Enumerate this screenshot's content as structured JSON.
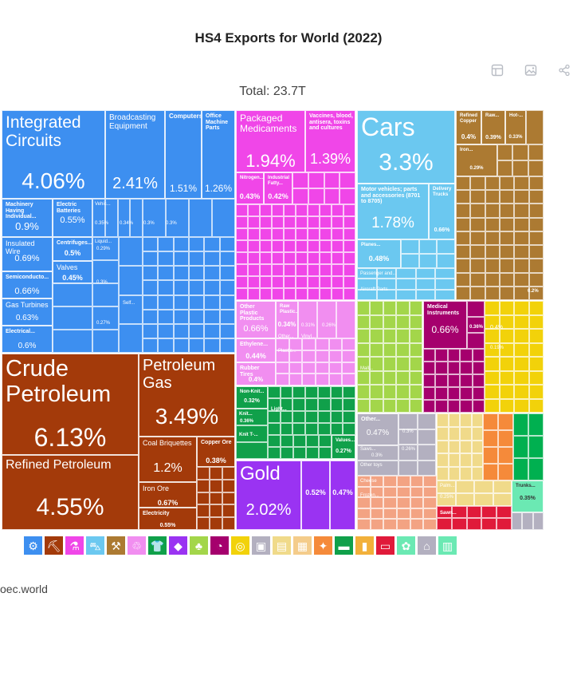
{
  "title": "HS4 Exports for World (2022)",
  "total": "Total: 23.7T",
  "source": "oec.world",
  "toolbar": [
    {
      "name": "table-icon"
    },
    {
      "name": "image-icon"
    },
    {
      "name": "share-icon"
    }
  ],
  "colors": {
    "machines": "#3d8ff0",
    "mineral": "#a33a0a",
    "chemical": "#f046e8",
    "transport": "#6bc8f0",
    "metals": "#ac7a32",
    "plastics": "#f18ef0",
    "textiles": "#10a04a",
    "precious": "#9a33f2",
    "vegetable": "#a3d64a",
    "instruments": "#a5006d",
    "misc": "#f2d20a",
    "stone": "#b3b0c0",
    "foodstuffs": "#f0da8a",
    "animal": "#f58a3a",
    "wood": "#f3a383",
    "weapons": "#e01a3a",
    "footwear": "#6be9b3",
    "paper": "#f4cc8b",
    "hides": "#00b050"
  },
  "chart_data": {
    "type": "treemap",
    "title": "HS4 Exports for World (2022)",
    "total": "23.7T",
    "tiles": [
      {
        "label": "Integrated Circuits",
        "share": "4.06%",
        "sector": "machines"
      },
      {
        "label": "Broadcasting Equipment",
        "share": "2.41%",
        "sector": "machines"
      },
      {
        "label": "Computers",
        "share": "1.51%",
        "sector": "machines"
      },
      {
        "label": "Office Machine Parts",
        "share": "1.26%",
        "sector": "machines"
      },
      {
        "label": "Machinery Having Individual...",
        "share": "0.9%",
        "sector": "machines"
      },
      {
        "label": "Electric Batteries",
        "share": "0.55%",
        "sector": "machines"
      },
      {
        "label": "Insulated Wire",
        "share": "0.69%",
        "sector": "machines"
      },
      {
        "label": "Centrifuges...",
        "share": "0.5%",
        "sector": "machines"
      },
      {
        "label": "Valves",
        "share": "0.45%",
        "sector": "machines"
      },
      {
        "label": "Semiconducto...",
        "share": "0.66%",
        "sector": "machines"
      },
      {
        "label": "Gas Turbines",
        "share": "0.63%",
        "sector": "machines"
      },
      {
        "label": "Electrical...",
        "share": "0.6%",
        "sector": "machines"
      },
      {
        "label": "Crude Petroleum",
        "share": "6.13%",
        "sector": "mineral"
      },
      {
        "label": "Refined Petroleum",
        "share": "4.55%",
        "sector": "mineral"
      },
      {
        "label": "Petroleum Gas",
        "share": "3.49%",
        "sector": "mineral"
      },
      {
        "label": "Coal Briquettes",
        "share": "1.2%",
        "sector": "mineral"
      },
      {
        "label": "Copper Ore",
        "share": "0.38%",
        "sector": "mineral"
      },
      {
        "label": "Iron Ore",
        "share": "0.67%",
        "sector": "mineral"
      },
      {
        "label": "Electricity",
        "share": "0.55%",
        "sector": "mineral"
      },
      {
        "label": "Packaged Medicaments",
        "share": "1.94%",
        "sector": "chemical"
      },
      {
        "label": "Vaccines, blood, antisera, toxins and cultures",
        "share": "1.39%",
        "sector": "chemical"
      },
      {
        "label": "Nitrogen...",
        "share": "0.43%",
        "sector": "chemical"
      },
      {
        "label": "Industrial Fatty...",
        "share": "0.42%",
        "sector": "chemical"
      },
      {
        "label": "Cars",
        "share": "3.3%",
        "sector": "transport"
      },
      {
        "label": "Motor vehicles; parts and accessories (8701 to 8705)",
        "share": "1.78%",
        "sector": "transport"
      },
      {
        "label": "Delivery Trucks",
        "share": "0.66%",
        "sector": "transport"
      },
      {
        "label": "Planes...",
        "share": "0.48%",
        "sector": "transport"
      },
      {
        "label": "Refined Copper",
        "share": "0.4%",
        "sector": "metals"
      },
      {
        "label": "Raw...",
        "share": "0.39%",
        "sector": "metals"
      },
      {
        "label": "Hot-...",
        "share": "0.33%",
        "sector": "metals"
      },
      {
        "label": "Iron...",
        "share": "0.29%",
        "sector": "metals"
      },
      {
        "label": "Other Plastic Products",
        "share": "0.66%",
        "sector": "plastics"
      },
      {
        "label": "Raw Plastic...",
        "share": "0.34%",
        "sector": "plastics"
      },
      {
        "label": "Ethylene...",
        "share": "0.44%",
        "sector": "plastics"
      },
      {
        "label": "Rubber Tires",
        "share": "0.4%",
        "sector": "plastics"
      },
      {
        "label": "Non-Knit...",
        "share": "0.32%",
        "sector": "textiles"
      },
      {
        "label": "Values...",
        "share": "0.27%",
        "sector": "textiles"
      },
      {
        "label": "Gold",
        "share": "2.02%",
        "sector": "precious"
      },
      {
        "label": "",
        "share": "0.52%",
        "sector": "precious"
      },
      {
        "label": "",
        "share": "0.47%",
        "sector": "precious"
      },
      {
        "label": "Medical Instruments",
        "share": "0.66%",
        "sector": "instruments"
      },
      {
        "label": "Other...",
        "share": "0.47%",
        "sector": "stone"
      },
      {
        "label": "Trunks...",
        "share": "0.35%",
        "sector": "footwear"
      }
    ]
  },
  "tile_texts": {
    "t_small": [
      "0.35%",
      "0.34%",
      "0.3%",
      "0.3%",
      "0.29%",
      "0.27%",
      "0.38%",
      "0.36%",
      "0.3%",
      "0.3%",
      "0.2%",
      "0.19%",
      "0.26%",
      "0.31%",
      "0.26%",
      "0.3%",
      "0.25%",
      "0.4%",
      "0.3%",
      "0.3%",
      "0.36%"
    ],
    "l_small": [
      "Vehic...",
      "Liquid...",
      "Passenger and...",
      "Aircraft Parts",
      "Self...",
      "Other...",
      "Vinyl...",
      "Plastic...",
      "Light...",
      "Knit...",
      "Knit T-...",
      "Mall...",
      "Saws...",
      "Other toys",
      "Cheese",
      "Frozen...",
      "Palm...",
      "Sawn..."
    ]
  },
  "legend": [
    {
      "name": "machines-icon",
      "color": "#3d8ff0",
      "glyph": "⚙"
    },
    {
      "name": "mineral-products-icon",
      "color": "#a33a0a",
      "glyph": "⛏"
    },
    {
      "name": "chemical-products-icon",
      "color": "#f046e8",
      "glyph": "⚗"
    },
    {
      "name": "transportation-icon",
      "color": "#6bc8f0",
      "glyph": "⛍"
    },
    {
      "name": "metals-icon",
      "color": "#ac7a32",
      "glyph": "⚒"
    },
    {
      "name": "plastics-rubbers-icon",
      "color": "#f18ef0",
      "glyph": "♲"
    },
    {
      "name": "textiles-icon",
      "color": "#10a04a",
      "glyph": "👕"
    },
    {
      "name": "precious-metals-icon",
      "color": "#9a33f2",
      "glyph": "◆"
    },
    {
      "name": "vegetable-products-icon",
      "color": "#a3d64a",
      "glyph": "♣"
    },
    {
      "name": "instruments-icon",
      "color": "#a5006d",
      "glyph": "◔"
    },
    {
      "name": "miscellaneous-icon",
      "color": "#f2d20a",
      "glyph": "◎"
    },
    {
      "name": "stone-and-glass-icon",
      "color": "#b3b0c0",
      "glyph": "▣"
    },
    {
      "name": "foodstuffs-icon",
      "color": "#f0da8a",
      "glyph": "▤"
    },
    {
      "name": "paper-goods-icon",
      "color": "#f4cc8b",
      "glyph": "▦"
    },
    {
      "name": "animal-products-icon",
      "color": "#f58a3a",
      "glyph": "✦"
    },
    {
      "name": "footwear-icon",
      "color": "#10a04a",
      "glyph": "▬"
    },
    {
      "name": "animal-vegetable-oils-icon",
      "color": "#f2b03a",
      "glyph": "▮"
    },
    {
      "name": "weapons-icon",
      "color": "#e01a3a",
      "glyph": "▭"
    },
    {
      "name": "animal-hides-icon",
      "color": "#6be9b3",
      "glyph": "✿"
    },
    {
      "name": "arts-antiques-icon",
      "color": "#b3b0c0",
      "glyph": "⌂"
    },
    {
      "name": "wood-products-icon",
      "color": "#6be9b3",
      "glyph": "▥"
    }
  ]
}
